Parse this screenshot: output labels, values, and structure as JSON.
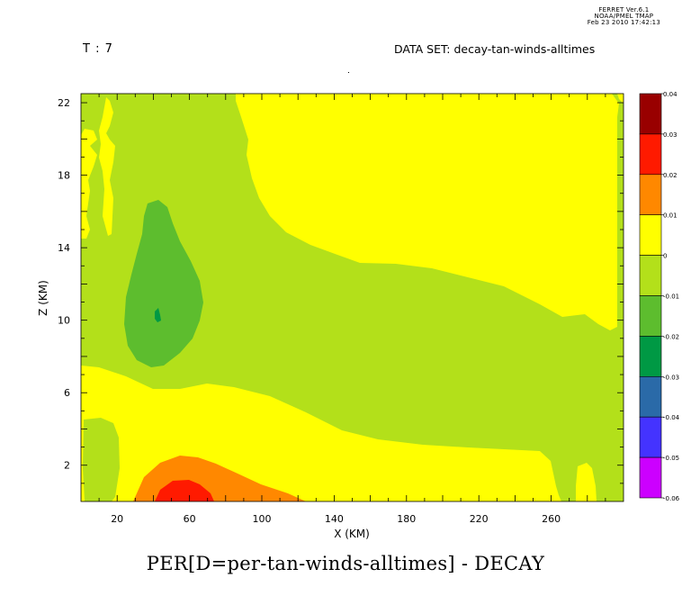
{
  "header": {
    "time_label": "T : 7",
    "dataset_label": "DATA SET: decay-tan-winds-alltimes",
    "stamp": [
      "FERRET Ver.6.1",
      "NOAA/PMEL TMAP",
      "Feb 23 2010 17:42:13"
    ]
  },
  "chart_data": {
    "type": "heatmap",
    "title": "PER[D=per-tan-winds-alltimes] - DECAY",
    "xlabel": "X (KM)",
    "ylabel": "Z (KM)",
    "xlim": [
      0,
      300
    ],
    "ylim": [
      0,
      22.5
    ],
    "x_ticks": [
      20,
      60,
      100,
      140,
      180,
      220,
      260
    ],
    "y_ticks": [
      2,
      6,
      10,
      14,
      18,
      22
    ],
    "colorbar": {
      "levels": [
        0.04,
        0.03,
        0.02,
        0.01,
        0,
        -0.01,
        -0.02,
        -0.03,
        -0.04,
        -0.05,
        -0.06
      ],
      "level_labels": [
        "0.04",
        "0.03",
        "0.02",
        "0.01",
        "0",
        "-0.01",
        "-0.02",
        "-0.03",
        "-0.04",
        "-0.05",
        "-0.06"
      ],
      "colors_top_to_bottom": [
        "#990000",
        "#ff1a00",
        "#ff8800",
        "#ffff00",
        "#b3e01a",
        "#5dbd2e",
        "#009944",
        "#2a6aa8",
        "#4433ff",
        "#cc00ff"
      ]
    },
    "regions": [
      {
        "range": [
          -0.01,
          0
        ],
        "color": "#b3e01a",
        "desc": "background field"
      },
      {
        "range": [
          0,
          0.01
        ],
        "color": "#ffff00",
        "desc": "upper-right region above x~80 km, and low-level band z~0.5-7 km"
      },
      {
        "range": [
          -0.02,
          -0.01
        ],
        "color": "#5dbd2e",
        "desc": "tongue centered x~42 km, z~7.5-16.5 km"
      },
      {
        "range": [
          -0.03,
          -0.02
        ],
        "color": "#009944",
        "desc": "small core near x~42 km, z~10 km"
      },
      {
        "range": [
          0.01,
          0.02
        ],
        "color": "#ff8800",
        "desc": "x~35-125 km, z~0-2.5 km"
      },
      {
        "range": [
          0.02,
          0.03
        ],
        "color": "#ff1a00",
        "desc": "x~42-72 km, z~0-1.2 km"
      }
    ]
  }
}
